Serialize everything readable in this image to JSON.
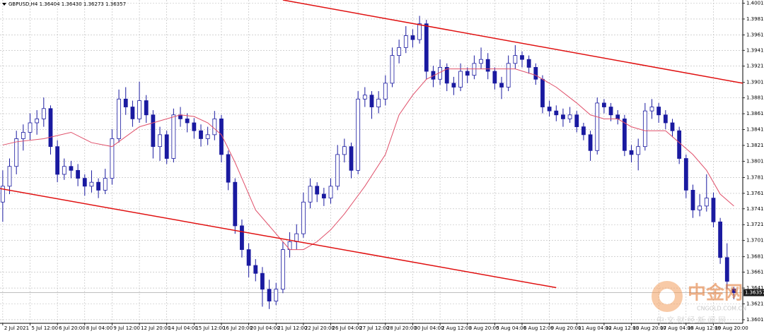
{
  "chart_data": {
    "type": "candlestick",
    "title": "GBPUSD,H4  1.36404 1.36430 1.36273 1.36357",
    "bull_color": "#ffffff",
    "bear_color": "#1a1aa0",
    "wick_color": "#1a1aa0",
    "ma_color": "#e0506a",
    "trend_color": "#e01010",
    "grid": true,
    "ylim": [
      1.3597,
      1.4005
    ],
    "xlim": [
      -0.4,
      108.3
    ],
    "yticks": [
      {
        "value": 1.4001,
        "label": "1.40010"
      },
      {
        "value": 1.3981,
        "label": "1.39810"
      },
      {
        "value": 1.3961,
        "label": "1.39610"
      },
      1.39415,
      1.39215,
      {
        "value": 1.3901,
        "label": "1.39010"
      },
      1.38815,
      1.38615,
      1.38415,
      1.38215,
      1.38015,
      {
        "value": 1.3781,
        "label": "1.37810"
      },
      {
        "value": 1.3761,
        "label": "1.37610"
      },
      1.37415,
      1.37215,
      1.37015,
      {
        "value": 1.3681,
        "label": "1.36810"
      },
      1.36615,
      1.36415,
      1.36215,
      1.36015
    ],
    "xticks": [
      {
        "value": 0,
        "label": "2 Jul 2021"
      },
      {
        "value": 4,
        "label": "5 Jul 12:00"
      },
      {
        "value": 8,
        "label": "6 Jul 20:00"
      },
      {
        "value": 12,
        "label": "8 Jul 04:00"
      },
      {
        "value": 16,
        "label": "9 Jul 12:00"
      },
      {
        "value": 20,
        "label": "12 Jul 20:00"
      },
      {
        "value": 24,
        "label": "14 Jul 04:00"
      },
      {
        "value": 28,
        "label": "15 Jul 12:00"
      },
      {
        "value": 32,
        "label": "16 Jul 20:00"
      },
      {
        "value": 36,
        "label": "20 Jul 04:00"
      },
      {
        "value": 40,
        "label": "21 Jul 12:00"
      },
      {
        "value": 44,
        "label": "22 Jul 20:00"
      },
      {
        "value": 48,
        "label": "26 Jul 04:00"
      },
      {
        "value": 52,
        "label": "27 Jul 12:00"
      },
      {
        "value": 56,
        "label": "28 Jul 20:00"
      },
      {
        "value": 60,
        "label": "30 Jul 04:00"
      },
      {
        "value": 64,
        "label": "2 Aug 12:00"
      },
      {
        "value": 68,
        "label": "3 Aug 20:00"
      },
      {
        "value": 72,
        "label": "5 Aug 04:00"
      },
      {
        "value": 76,
        "label": "6 Aug 12:00"
      },
      {
        "value": 80,
        "label": "9 Aug 20:00"
      },
      {
        "value": 84,
        "label": "11 Aug 04:00"
      },
      {
        "value": 88,
        "label": "12 Aug 12:00"
      },
      {
        "value": 92,
        "label": "13 Aug 20:00"
      },
      {
        "value": 96,
        "label": "17 Aug 04:00"
      },
      {
        "value": 100,
        "label": "18 Aug 12:00"
      },
      {
        "value": 104,
        "label": "19 Aug 20:00"
      }
    ],
    "current_price": 1.36357,
    "ohlc": [
      [
        1.375,
        1.379,
        1.3725,
        1.377
      ],
      [
        1.377,
        1.3805,
        1.376,
        1.3795
      ],
      [
        1.3795,
        1.384,
        1.3785,
        1.383
      ],
      [
        1.383,
        1.3848,
        1.3815,
        1.3838
      ],
      [
        1.3838,
        1.3862,
        1.3828,
        1.385
      ],
      [
        1.385,
        1.3866,
        1.3835,
        1.3855
      ],
      [
        1.3855,
        1.3882,
        1.3845,
        1.3868
      ],
      [
        1.3868,
        1.3872,
        1.381,
        1.382
      ],
      [
        1.382,
        1.3828,
        1.3775,
        1.3785
      ],
      [
        1.3785,
        1.3805,
        1.3778,
        1.3795
      ],
      [
        1.3795,
        1.3802,
        1.378,
        1.379
      ],
      [
        1.379,
        1.3798,
        1.377,
        1.378
      ],
      [
        1.378,
        1.3785,
        1.3758,
        1.377
      ],
      [
        1.377,
        1.379,
        1.3762,
        1.3775
      ],
      [
        1.3775,
        1.378,
        1.3755,
        1.3765
      ],
      [
        1.3765,
        1.3792,
        1.376,
        1.378
      ],
      [
        1.378,
        1.3842,
        1.3772,
        1.383
      ],
      [
        1.383,
        1.3892,
        1.3825,
        1.388
      ],
      [
        1.388,
        1.3895,
        1.386,
        1.387
      ],
      [
        1.387,
        1.3878,
        1.3845,
        1.3855
      ],
      [
        1.3855,
        1.3902,
        1.385,
        1.3878
      ],
      [
        1.3878,
        1.3885,
        1.385,
        1.386
      ],
      [
        1.386,
        1.3866,
        1.3805,
        1.382
      ],
      [
        1.382,
        1.3845,
        1.3802,
        1.3835
      ],
      [
        1.3835,
        1.384,
        1.3798,
        1.3805
      ],
      [
        1.3805,
        1.3868,
        1.38,
        1.386
      ],
      [
        1.386,
        1.387,
        1.3845,
        1.3855
      ],
      [
        1.3855,
        1.3862,
        1.3838,
        1.385
      ],
      [
        1.385,
        1.3856,
        1.383,
        1.384
      ],
      [
        1.384,
        1.3848,
        1.382,
        1.383
      ],
      [
        1.383,
        1.3845,
        1.3822,
        1.3835
      ],
      [
        1.3835,
        1.3865,
        1.3828,
        1.3855
      ],
      [
        1.3855,
        1.386,
        1.38,
        1.381
      ],
      [
        1.381,
        1.3815,
        1.3765,
        1.3775
      ],
      [
        1.3775,
        1.378,
        1.371,
        1.372
      ],
      [
        1.372,
        1.3728,
        1.368,
        1.369
      ],
      [
        1.369,
        1.3698,
        1.3655,
        1.367
      ],
      [
        1.367,
        1.3678,
        1.365,
        1.366
      ],
      [
        1.366,
        1.3668,
        1.3618,
        1.364
      ],
      [
        1.364,
        1.3652,
        1.3615,
        1.3625
      ],
      [
        1.3625,
        1.3648,
        1.362,
        1.364
      ],
      [
        1.364,
        1.37,
        1.3635,
        1.369
      ],
      [
        1.369,
        1.3712,
        1.368,
        1.37
      ],
      [
        1.37,
        1.3722,
        1.369,
        1.371
      ],
      [
        1.371,
        1.3762,
        1.3705,
        1.375
      ],
      [
        1.375,
        1.378,
        1.3742,
        1.377
      ],
      [
        1.377,
        1.3775,
        1.375,
        1.376
      ],
      [
        1.376,
        1.3768,
        1.3745,
        1.3755
      ],
      [
        1.3755,
        1.378,
        1.3748,
        1.377
      ],
      [
        1.377,
        1.3822,
        1.3765,
        1.381
      ],
      [
        1.381,
        1.383,
        1.38,
        1.382
      ],
      [
        1.382,
        1.3825,
        1.378,
        1.379
      ],
      [
        1.379,
        1.389,
        1.3785,
        1.388
      ],
      [
        1.388,
        1.3895,
        1.387,
        1.3885
      ],
      [
        1.3885,
        1.389,
        1.3855,
        1.387
      ],
      [
        1.387,
        1.389,
        1.3862,
        1.388
      ],
      [
        1.388,
        1.391,
        1.3872,
        1.39
      ],
      [
        1.39,
        1.3945,
        1.3895,
        1.3935
      ],
      [
        1.3935,
        1.3955,
        1.3925,
        1.3945
      ],
      [
        1.3945,
        1.3972,
        1.3938,
        1.396
      ],
      [
        1.396,
        1.3968,
        1.3945,
        1.3955
      ],
      [
        1.3955,
        1.3985,
        1.395,
        1.3975
      ],
      [
        1.3975,
        1.398,
        1.3905,
        1.3915
      ],
      [
        1.3915,
        1.3922,
        1.3895,
        1.3905
      ],
      [
        1.3905,
        1.393,
        1.3898,
        1.392
      ],
      [
        1.392,
        1.3925,
        1.389,
        1.39
      ],
      [
        1.39,
        1.3908,
        1.3885,
        1.3895
      ],
      [
        1.3895,
        1.3925,
        1.389,
        1.3915
      ],
      [
        1.3915,
        1.392,
        1.39,
        1.391
      ],
      [
        1.391,
        1.3935,
        1.3905,
        1.3925
      ],
      [
        1.3925,
        1.3945,
        1.3918,
        1.393
      ],
      [
        1.393,
        1.3938,
        1.3905,
        1.3915
      ],
      [
        1.3915,
        1.392,
        1.3892,
        1.39
      ],
      [
        1.39,
        1.3908,
        1.388,
        1.3895
      ],
      [
        1.3895,
        1.3935,
        1.389,
        1.3925
      ],
      [
        1.3925,
        1.3948,
        1.3918,
        1.3935
      ],
      [
        1.3935,
        1.394,
        1.392,
        1.393
      ],
      [
        1.393,
        1.3935,
        1.3912,
        1.392
      ],
      [
        1.392,
        1.3925,
        1.3898,
        1.3905
      ],
      [
        1.3905,
        1.391,
        1.3862,
        1.387
      ],
      [
        1.387,
        1.3878,
        1.3858,
        1.3865
      ],
      [
        1.3865,
        1.3872,
        1.3852,
        1.386
      ],
      [
        1.386,
        1.3868,
        1.3845,
        1.3855
      ],
      [
        1.3855,
        1.387,
        1.385,
        1.386
      ],
      [
        1.386,
        1.3865,
        1.3838,
        1.3845
      ],
      [
        1.3845,
        1.385,
        1.3828,
        1.3835
      ],
      [
        1.3835,
        1.384,
        1.3802,
        1.3815
      ],
      [
        1.3815,
        1.3882,
        1.381,
        1.3875
      ],
      [
        1.3875,
        1.388,
        1.3862,
        1.387
      ],
      [
        1.387,
        1.3875,
        1.3852,
        1.386
      ],
      [
        1.386,
        1.3866,
        1.3848,
        1.3855
      ],
      [
        1.3855,
        1.386,
        1.3808,
        1.3815
      ],
      [
        1.3815,
        1.3822,
        1.38,
        1.381
      ],
      [
        1.381,
        1.383,
        1.379,
        1.382
      ],
      [
        1.382,
        1.3875,
        1.3815,
        1.3865
      ],
      [
        1.3865,
        1.388,
        1.3855,
        1.387
      ],
      [
        1.387,
        1.3875,
        1.385,
        1.386
      ],
      [
        1.386,
        1.3866,
        1.3842,
        1.385
      ],
      [
        1.385,
        1.3855,
        1.3832,
        1.384
      ],
      [
        1.384,
        1.3845,
        1.3798,
        1.3805
      ],
      [
        1.3805,
        1.381,
        1.3755,
        1.3765
      ],
      [
        1.3765,
        1.3772,
        1.373,
        1.374
      ],
      [
        1.374,
        1.376,
        1.3732,
        1.3745
      ],
      [
        1.3745,
        1.3785,
        1.3738,
        1.3755
      ],
      [
        1.3755,
        1.3762,
        1.3718,
        1.3725
      ],
      [
        1.3725,
        1.373,
        1.3672,
        1.368
      ],
      [
        1.368,
        1.3698,
        1.364,
        1.365
      ],
      [
        1.36404,
        1.3643,
        1.36273,
        1.36357
      ]
    ],
    "ma": {
      "x": [
        0,
        2,
        6,
        10,
        13,
        16,
        20,
        24,
        26,
        28,
        30,
        32,
        34,
        37,
        40,
        42,
        44,
        46,
        48,
        50,
        53,
        56,
        58,
        60,
        62,
        65,
        68,
        71,
        75,
        78,
        81,
        84,
        86,
        88,
        90,
        92,
        94,
        97,
        99,
        101,
        103,
        105,
        107
      ],
      "values": [
        1.3822,
        1.3826,
        1.383,
        1.3838,
        1.3825,
        1.382,
        1.3845,
        1.3855,
        1.386,
        1.3858,
        1.385,
        1.3835,
        1.38,
        1.374,
        1.371,
        1.369,
        1.369,
        1.37,
        1.3715,
        1.3735,
        1.377,
        1.381,
        1.386,
        1.3885,
        1.3905,
        1.3918,
        1.3918,
        1.3918,
        1.3918,
        1.391,
        1.3895,
        1.3875,
        1.386,
        1.3855,
        1.3855,
        1.3845,
        1.384,
        1.384,
        1.3825,
        1.381,
        1.379,
        1.376,
        1.3745
      ]
    },
    "trend_lines": [
      {
        "x": [
          41,
          108.3
        ],
        "y": [
          1.4005,
          1.39
        ]
      },
      {
        "x": [
          -0.4,
          81
        ],
        "y": [
          1.3767,
          1.3642
        ]
      }
    ]
  },
  "watermark": {
    "brand": "中金网",
    "domain": "CNGOLD.COM.CN",
    "slogan": "中 文 财 经 新 闻 网"
  }
}
